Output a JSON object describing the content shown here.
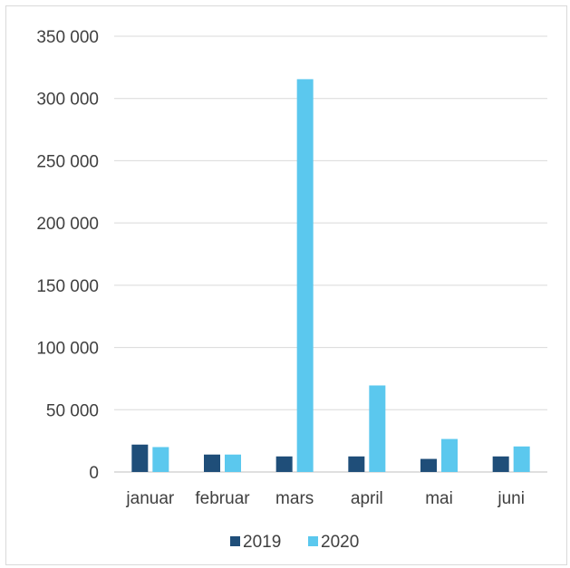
{
  "chart_data": {
    "type": "bar",
    "categories": [
      "januar",
      "februar",
      "mars",
      "april",
      "mai",
      "juni"
    ],
    "series": [
      {
        "name": "2019",
        "color": "#1f4e79",
        "values": [
          22000,
          14000,
          12500,
          12500,
          10500,
          12500
        ]
      },
      {
        "name": "2020",
        "color": "#5bc8ee",
        "values": [
          20000,
          14000,
          315500,
          69500,
          26500,
          20500
        ]
      }
    ],
    "ylim": [
      0,
      350000
    ],
    "yticks": [
      0,
      50000,
      100000,
      150000,
      200000,
      250000,
      300000,
      350000
    ],
    "ytick_labels": [
      "0",
      "50 000",
      "100 000",
      "150 000",
      "200 000",
      "250 000",
      "300 000",
      "350 000"
    ],
    "grid": true,
    "legend_position": "bottom",
    "title": "",
    "xlabel": "",
    "ylabel": ""
  }
}
